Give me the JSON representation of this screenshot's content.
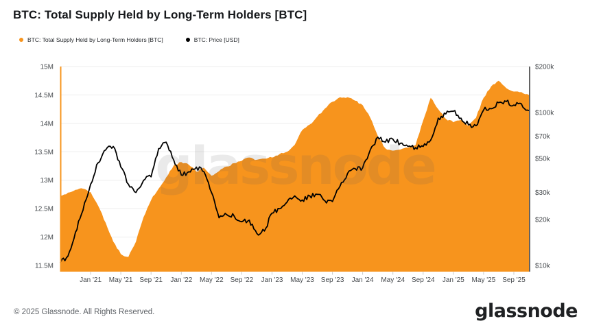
{
  "header": {
    "title": "BTC: Total Supply Held by Long-Term Holders [BTC]"
  },
  "legend": [
    {
      "label": "BTC: Total Supply Held by Long-Term Holders [BTC]",
      "color": "#F7941D"
    },
    {
      "label": "BTC: Price [USD]",
      "color": "#000000"
    }
  ],
  "watermark": {
    "text": "glassnode"
  },
  "footer": {
    "copyright": "© 2025 Glassnode. All Rights Reserved.",
    "logo": "glassnode"
  },
  "colors": {
    "supply_area": "#F7941D",
    "price_line": "#000000",
    "grid": "#ededed",
    "right_axis": "#3c3c3c",
    "tick": "#c9c9c9",
    "axis_text": "#45494d",
    "background": "#ffffff"
  },
  "chart_data": {
    "type": "area",
    "title": "BTC: Total Supply Held by Long-Term Holders [BTC]",
    "x_months": [
      "2020-09",
      "2020-10",
      "2020-11",
      "2020-12",
      "2021-01",
      "2021-02",
      "2021-03",
      "2021-04",
      "2021-05",
      "2021-06",
      "2021-07",
      "2021-08",
      "2021-09",
      "2021-10",
      "2021-11",
      "2021-12",
      "2022-01",
      "2022-02",
      "2022-03",
      "2022-04",
      "2022-05",
      "2022-06",
      "2022-07",
      "2022-08",
      "2022-09",
      "2022-10",
      "2022-11",
      "2022-12",
      "2023-01",
      "2023-02",
      "2023-03",
      "2023-04",
      "2023-05",
      "2023-06",
      "2023-07",
      "2023-08",
      "2023-09",
      "2023-10",
      "2023-11",
      "2023-12",
      "2024-01",
      "2024-02",
      "2024-03",
      "2024-04",
      "2024-05",
      "2024-06",
      "2024-07",
      "2024-08",
      "2024-09",
      "2024-10",
      "2024-11",
      "2024-12",
      "2025-01",
      "2025-02",
      "2025-03",
      "2025-04",
      "2025-05",
      "2025-06",
      "2025-07",
      "2025-08",
      "2025-09",
      "2025-10",
      "2025-11"
    ],
    "series": [
      {
        "name": "BTC: Total Supply Held by Long-Term Holders [BTC]",
        "type": "area",
        "axis": "left",
        "unit": "M BTC",
        "color": "#F7941D",
        "values": [
          12.72,
          12.78,
          12.83,
          12.85,
          12.79,
          12.55,
          12.25,
          11.92,
          11.7,
          11.65,
          11.92,
          12.35,
          12.65,
          12.85,
          13.05,
          13.26,
          13.32,
          13.27,
          13.15,
          13.22,
          13.08,
          13.16,
          13.24,
          13.3,
          13.34,
          13.4,
          13.36,
          13.38,
          13.4,
          13.46,
          13.5,
          13.62,
          13.88,
          13.98,
          14.12,
          14.26,
          14.38,
          14.46,
          14.46,
          14.4,
          14.32,
          14.1,
          13.78,
          13.56,
          13.52,
          13.54,
          13.57,
          13.62,
          14.05,
          14.45,
          14.25,
          14.08,
          14.02,
          14.06,
          13.95,
          14.1,
          14.45,
          14.65,
          14.75,
          14.62,
          14.56,
          14.55,
          14.5
        ]
      },
      {
        "name": "BTC: Price [USD]",
        "type": "line",
        "axis": "right",
        "unit": "k USD",
        "color": "#000000",
        "values": [
          10.4,
          11.5,
          16.5,
          23,
          34,
          47,
          57,
          60,
          44,
          34,
          30,
          36,
          38,
          58,
          64,
          49,
          39,
          41,
          44,
          41,
          30,
          20.5,
          21.5,
          21,
          19.3,
          19.8,
          16.2,
          16.8,
          22,
          23.5,
          26,
          28.5,
          26.8,
          28.5,
          29.2,
          26.5,
          26.2,
          33,
          40,
          43,
          43.5,
          57,
          69,
          64,
          67,
          63,
          60,
          59,
          60,
          66,
          92,
          98,
          102,
          92,
          83,
          82,
          104,
          106,
          116,
          118,
          112,
          114,
          103
        ]
      }
    ],
    "x_ticks": [
      {
        "label": "Jan '21",
        "month_index": 4
      },
      {
        "label": "May '21",
        "month_index": 8
      },
      {
        "label": "Sep '21",
        "month_index": 12
      },
      {
        "label": "Jan '22",
        "month_index": 16
      },
      {
        "label": "May '22",
        "month_index": 20
      },
      {
        "label": "Sep '22",
        "month_index": 24
      },
      {
        "label": "Jan '23",
        "month_index": 28
      },
      {
        "label": "May '23",
        "month_index": 32
      },
      {
        "label": "Sep '23",
        "month_index": 36
      },
      {
        "label": "Jan '24",
        "month_index": 40
      },
      {
        "label": "May '24",
        "month_index": 44
      },
      {
        "label": "Sep '24",
        "month_index": 48
      },
      {
        "label": "Jan '25",
        "month_index": 52
      },
      {
        "label": "May '25",
        "month_index": 56
      },
      {
        "label": "Sep '25",
        "month_index": 60
      }
    ],
    "y_left": {
      "scale": "linear",
      "unit": "BTC",
      "tick_labels": [
        "15M",
        "14.5M",
        "14M",
        "13.5M",
        "13M",
        "12.5M",
        "12M",
        "11.5M"
      ],
      "tick_values": [
        15,
        14.5,
        14,
        13.5,
        13,
        12.5,
        12,
        11.5
      ],
      "range": [
        11.4,
        15
      ]
    },
    "y_right": {
      "scale": "log",
      "unit": "USD",
      "tick_labels": [
        "$200k",
        "$100k",
        "$70k",
        "$50k",
        "$30k",
        "$20k",
        "$10k"
      ],
      "tick_values_k": [
        200,
        100,
        70,
        50,
        30,
        20,
        10
      ],
      "range_k": [
        9.4,
        200
      ]
    },
    "grid": "horizontal",
    "legend_position": "top-left"
  }
}
